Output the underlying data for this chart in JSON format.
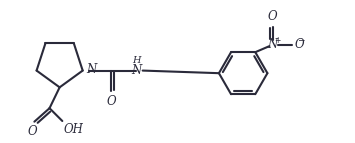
{
  "bg_color": "#ffffff",
  "line_color": "#2a2a3a",
  "line_width": 1.5,
  "font_size": 8.5,
  "fig_width": 3.55,
  "fig_height": 1.43,
  "dpi": 100,
  "xlim": [
    0,
    10.5
  ],
  "ylim": [
    0,
    4.2
  ]
}
